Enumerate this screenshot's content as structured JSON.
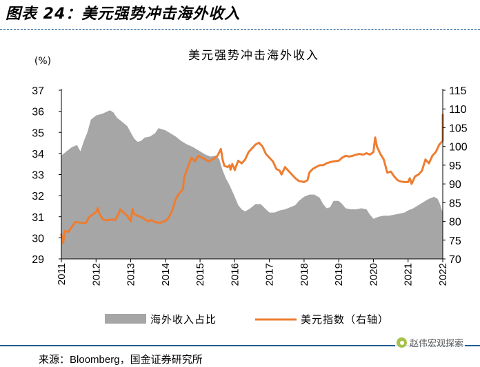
{
  "figure": {
    "title": "图表 24：美元强势冲击海外收入",
    "source_label": "来源：",
    "source_name": "Bloomberg",
    "source_rest": "，国金证券研究所",
    "watermark": "赵伟宏观探索"
  },
  "chart_data": {
    "type": "area+line",
    "title": "美元强势冲击海外收入",
    "left_unit": "(%)",
    "x_ticks": [
      "2011",
      "2012",
      "2013",
      "2014",
      "2015",
      "2016",
      "2017",
      "2018",
      "2019",
      "2020",
      "2021",
      "2022"
    ],
    "ylim_left": [
      29,
      37
    ],
    "yticks_left": [
      29,
      30,
      31,
      32,
      33,
      34,
      35,
      36,
      37
    ],
    "ylim_right": [
      70,
      115
    ],
    "yticks_right": [
      70,
      75,
      80,
      85,
      90,
      95,
      100,
      105,
      110,
      115
    ],
    "xlim": [
      2011.0,
      2022.0
    ],
    "legend_position": "bottom",
    "series": [
      {
        "name": "海外收入占比",
        "type": "area",
        "axis": "left",
        "color": "#a6a6a6",
        "points": [
          [
            2011.0,
            33.9
          ],
          [
            2011.15,
            34.1
          ],
          [
            2011.3,
            34.3
          ],
          [
            2011.45,
            34.4
          ],
          [
            2011.55,
            34.1
          ],
          [
            2011.65,
            34.6
          ],
          [
            2011.75,
            35.0
          ],
          [
            2011.85,
            35.6
          ],
          [
            2012.0,
            35.8
          ],
          [
            2012.2,
            35.9
          ],
          [
            2012.4,
            36.05
          ],
          [
            2012.5,
            35.95
          ],
          [
            2012.6,
            35.7
          ],
          [
            2012.75,
            35.5
          ],
          [
            2012.9,
            35.3
          ],
          [
            2013.0,
            35.0
          ],
          [
            2013.1,
            34.7
          ],
          [
            2013.2,
            34.55
          ],
          [
            2013.3,
            34.6
          ],
          [
            2013.4,
            34.75
          ],
          [
            2013.55,
            34.8
          ],
          [
            2013.7,
            34.95
          ],
          [
            2013.8,
            35.2
          ],
          [
            2014.0,
            35.1
          ],
          [
            2014.15,
            34.95
          ],
          [
            2014.3,
            34.8
          ],
          [
            2014.45,
            34.6
          ],
          [
            2014.6,
            34.45
          ],
          [
            2014.8,
            34.3
          ],
          [
            2015.0,
            34.1
          ],
          [
            2015.15,
            33.95
          ],
          [
            2015.3,
            33.85
          ],
          [
            2015.45,
            33.9
          ],
          [
            2015.55,
            33.75
          ],
          [
            2015.65,
            33.2
          ],
          [
            2015.75,
            32.8
          ],
          [
            2015.85,
            32.5
          ],
          [
            2016.0,
            31.95
          ],
          [
            2016.1,
            31.55
          ],
          [
            2016.2,
            31.35
          ],
          [
            2016.3,
            31.25
          ],
          [
            2016.45,
            31.4
          ],
          [
            2016.6,
            31.6
          ],
          [
            2016.75,
            31.6
          ],
          [
            2016.9,
            31.35
          ],
          [
            2017.0,
            31.2
          ],
          [
            2017.15,
            31.2
          ],
          [
            2017.3,
            31.3
          ],
          [
            2017.45,
            31.35
          ],
          [
            2017.6,
            31.45
          ],
          [
            2017.75,
            31.55
          ],
          [
            2017.85,
            31.75
          ],
          [
            2018.0,
            31.95
          ],
          [
            2018.15,
            32.05
          ],
          [
            2018.3,
            32.05
          ],
          [
            2018.45,
            31.9
          ],
          [
            2018.55,
            31.6
          ],
          [
            2018.65,
            31.4
          ],
          [
            2018.75,
            31.45
          ],
          [
            2018.85,
            31.75
          ],
          [
            2019.0,
            31.75
          ],
          [
            2019.1,
            31.6
          ],
          [
            2019.2,
            31.4
          ],
          [
            2019.35,
            31.35
          ],
          [
            2019.5,
            31.35
          ],
          [
            2019.65,
            31.4
          ],
          [
            2019.8,
            31.35
          ],
          [
            2019.9,
            31.1
          ],
          [
            2020.0,
            30.9
          ],
          [
            2020.15,
            31.0
          ],
          [
            2020.3,
            31.05
          ],
          [
            2020.45,
            31.05
          ],
          [
            2020.6,
            31.1
          ],
          [
            2020.75,
            31.15
          ],
          [
            2020.9,
            31.2
          ],
          [
            2021.0,
            31.3
          ],
          [
            2021.15,
            31.4
          ],
          [
            2021.3,
            31.55
          ],
          [
            2021.45,
            31.7
          ],
          [
            2021.6,
            31.85
          ],
          [
            2021.75,
            31.95
          ],
          [
            2021.85,
            31.85
          ],
          [
            2021.92,
            31.6
          ],
          [
            2022.0,
            31.2
          ]
        ]
      },
      {
        "name": "美元指数（右轴）",
        "type": "line",
        "axis": "right",
        "color": "#ed7d31",
        "points": [
          [
            2011.0,
            76.5
          ],
          [
            2011.05,
            74.2
          ],
          [
            2011.1,
            77.5
          ],
          [
            2011.2,
            77.2
          ],
          [
            2011.3,
            78.5
          ],
          [
            2011.4,
            79.8
          ],
          [
            2011.55,
            79.7
          ],
          [
            2011.7,
            79.5
          ],
          [
            2011.8,
            81.2
          ],
          [
            2011.9,
            81.8
          ],
          [
            2012.0,
            82.5
          ],
          [
            2012.05,
            83.5
          ],
          [
            2012.1,
            82.0
          ],
          [
            2012.2,
            80.5
          ],
          [
            2012.3,
            80.3
          ],
          [
            2012.45,
            80.5
          ],
          [
            2012.55,
            80.4
          ],
          [
            2012.65,
            82.0
          ],
          [
            2012.7,
            83.2
          ],
          [
            2012.8,
            82.3
          ],
          [
            2012.9,
            81.5
          ],
          [
            2013.0,
            80.0
          ],
          [
            2013.05,
            83.3
          ],
          [
            2013.1,
            82.0
          ],
          [
            2013.2,
            81.5
          ],
          [
            2013.3,
            81.2
          ],
          [
            2013.4,
            80.6
          ],
          [
            2013.5,
            80.0
          ],
          [
            2013.6,
            80.4
          ],
          [
            2013.7,
            79.8
          ],
          [
            2013.85,
            79.6
          ],
          [
            2014.0,
            80.2
          ],
          [
            2014.1,
            81.0
          ],
          [
            2014.2,
            83.0
          ],
          [
            2014.3,
            86.0
          ],
          [
            2014.4,
            87.5
          ],
          [
            2014.5,
            88.5
          ],
          [
            2014.55,
            92.0
          ],
          [
            2014.65,
            94.5
          ],
          [
            2014.75,
            97.0
          ],
          [
            2014.85,
            96.0
          ],
          [
            2014.95,
            97.5
          ],
          [
            2015.05,
            97.0
          ],
          [
            2015.15,
            96.5
          ],
          [
            2015.25,
            96.0
          ],
          [
            2015.35,
            96.5
          ],
          [
            2015.45,
            97.0
          ],
          [
            2015.5,
            97.5
          ],
          [
            2015.6,
            99.3
          ],
          [
            2015.65,
            96.5
          ],
          [
            2015.7,
            94.8
          ],
          [
            2015.8,
            94.5
          ],
          [
            2015.85,
            95.0
          ],
          [
            2015.88,
            93.8
          ],
          [
            2015.93,
            95.3
          ],
          [
            2015.97,
            94.5
          ],
          [
            2016.0,
            93.7
          ],
          [
            2016.05,
            95.0
          ],
          [
            2016.1,
            96.2
          ],
          [
            2016.2,
            95.5
          ],
          [
            2016.3,
            96.5
          ],
          [
            2016.4,
            98.5
          ],
          [
            2016.5,
            99.5
          ],
          [
            2016.6,
            100.5
          ],
          [
            2016.7,
            101.0
          ],
          [
            2016.8,
            100.0
          ],
          [
            2016.9,
            98.0
          ],
          [
            2017.0,
            97.0
          ],
          [
            2017.1,
            96.0
          ],
          [
            2017.2,
            94.0
          ],
          [
            2017.3,
            93.5
          ],
          [
            2017.35,
            92.5
          ],
          [
            2017.45,
            94.5
          ],
          [
            2017.55,
            93.5
          ],
          [
            2017.65,
            92.5
          ],
          [
            2017.75,
            91.5
          ],
          [
            2017.85,
            90.8
          ],
          [
            2018.0,
            90.5
          ],
          [
            2018.1,
            91.0
          ],
          [
            2018.15,
            93.0
          ],
          [
            2018.25,
            94.0
          ],
          [
            2018.35,
            94.5
          ],
          [
            2018.45,
            95.0
          ],
          [
            2018.55,
            95.0
          ],
          [
            2018.65,
            95.5
          ],
          [
            2018.75,
            95.8
          ],
          [
            2018.85,
            96.0
          ],
          [
            2019.0,
            96.2
          ],
          [
            2019.1,
            97.0
          ],
          [
            2019.2,
            97.5
          ],
          [
            2019.3,
            97.3
          ],
          [
            2019.4,
            97.5
          ],
          [
            2019.5,
            97.8
          ],
          [
            2019.6,
            98.0
          ],
          [
            2019.7,
            97.8
          ],
          [
            2019.8,
            98.2
          ],
          [
            2019.9,
            97.8
          ],
          [
            2020.0,
            98.5
          ],
          [
            2020.05,
            102.4
          ],
          [
            2020.1,
            100.0
          ],
          [
            2020.2,
            98.0
          ],
          [
            2020.3,
            96.5
          ],
          [
            2020.4,
            93.0
          ],
          [
            2020.5,
            93.3
          ],
          [
            2020.6,
            92.0
          ],
          [
            2020.7,
            91.0
          ],
          [
            2020.8,
            90.6
          ],
          [
            2020.9,
            90.5
          ],
          [
            2021.0,
            90.5
          ],
          [
            2021.05,
            91.5
          ],
          [
            2021.1,
            90.0
          ],
          [
            2021.2,
            92.0
          ],
          [
            2021.3,
            92.5
          ],
          [
            2021.4,
            93.5
          ],
          [
            2021.5,
            96.5
          ],
          [
            2021.55,
            96.0
          ],
          [
            2021.6,
            95.5
          ],
          [
            2021.7,
            97.5
          ],
          [
            2021.8,
            98.5
          ],
          [
            2021.9,
            100.5
          ],
          [
            2022.0,
            101.5
          ],
          [
            2022.1,
            103.0
          ],
          [
            2022.2,
            106.5
          ],
          [
            2022.3,
            108.5
          ],
          [
            2022.38,
            105.0
          ],
          [
            2022.45,
            108.0
          ]
        ]
      }
    ],
    "legend": [
      {
        "label": "海外收入占比",
        "kind": "area",
        "color": "#a6a6a6"
      },
      {
        "label": "美元指数（右轴）",
        "kind": "line",
        "color": "#ed7d31"
      }
    ]
  }
}
